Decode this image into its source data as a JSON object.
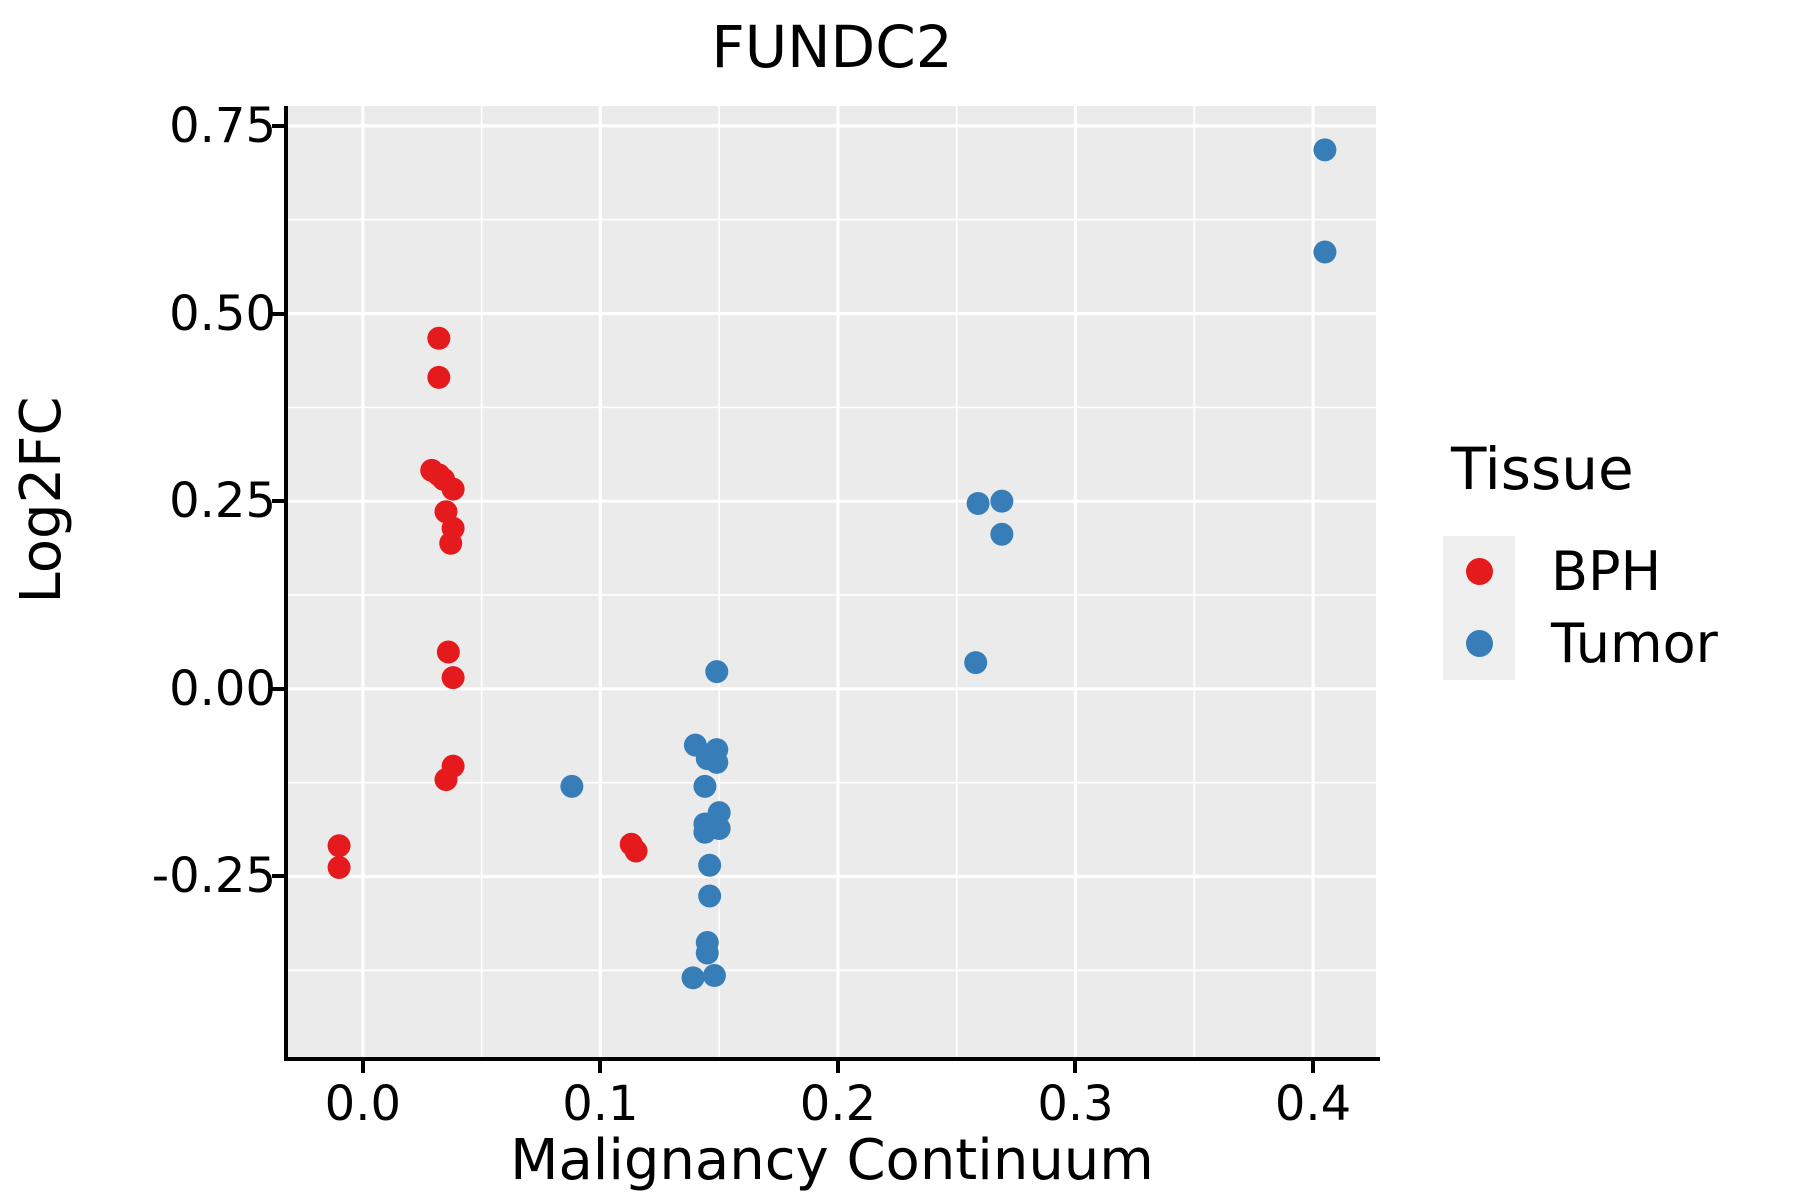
{
  "figure": {
    "background": "#FFFFFF"
  },
  "chart_data": {
    "type": "scatter",
    "title": "FUNDC2",
    "xlabel": "Malignancy Continuum",
    "ylabel": "Log2FC",
    "xlim": [
      -0.0315,
      0.4265
    ],
    "ylim": [
      -0.4905,
      0.7765
    ],
    "grid": true,
    "panel_bg": "#EBEBEB",
    "grid_major_color": "#FFFFFF",
    "grid_minor_color": "#FFFFFF",
    "point_radius_px": 11.5,
    "legend_position": "right",
    "xticks": [
      {
        "v": 0.0,
        "label": "0.0"
      },
      {
        "v": 0.1,
        "label": "0.1"
      },
      {
        "v": 0.2,
        "label": "0.2"
      },
      {
        "v": 0.3,
        "label": "0.3"
      },
      {
        "v": 0.4,
        "label": "0.4"
      }
    ],
    "yticks": [
      {
        "v": 0.75,
        "label": "0.75"
      },
      {
        "v": 0.5,
        "label": "0.50"
      },
      {
        "v": 0.25,
        "label": "0.25"
      },
      {
        "v": 0.0,
        "label": "0.00"
      },
      {
        "v": -0.25,
        "label": "-0.25"
      }
    ],
    "xminor": [
      0.05,
      0.15,
      0.25,
      0.35
    ],
    "yminor": [
      0.625,
      0.375,
      0.125,
      -0.125,
      -0.375
    ],
    "series": [
      {
        "name": "BPH",
        "color": "#E41A1C",
        "points": [
          [
            -0.01,
            -0.209
          ],
          [
            -0.01,
            -0.238
          ],
          [
            0.032,
            0.467
          ],
          [
            0.032,
            0.415
          ],
          [
            0.029,
            0.291
          ],
          [
            0.032,
            0.285
          ],
          [
            0.034,
            0.279
          ],
          [
            0.038,
            0.266
          ],
          [
            0.035,
            0.236
          ],
          [
            0.038,
            0.214
          ],
          [
            0.037,
            0.194
          ],
          [
            0.036,
            0.049
          ],
          [
            0.038,
            0.015
          ],
          [
            0.038,
            -0.103
          ],
          [
            0.035,
            -0.121
          ],
          [
            0.113,
            -0.207
          ],
          [
            0.115,
            -0.216
          ]
        ]
      },
      {
        "name": "Tumor",
        "color": "#377EB8",
        "points": [
          [
            0.405,
            0.718
          ],
          [
            0.405,
            0.582
          ],
          [
            0.259,
            0.247
          ],
          [
            0.269,
            0.25
          ],
          [
            0.269,
            0.206
          ],
          [
            0.258,
            0.035
          ],
          [
            0.149,
            0.023
          ],
          [
            0.088,
            -0.13
          ],
          [
            0.14,
            -0.075
          ],
          [
            0.149,
            -0.081
          ],
          [
            0.145,
            -0.093
          ],
          [
            0.149,
            -0.098
          ],
          [
            0.144,
            -0.13
          ],
          [
            0.15,
            -0.165
          ],
          [
            0.144,
            -0.18
          ],
          [
            0.15,
            -0.186
          ],
          [
            0.144,
            -0.191
          ],
          [
            0.146,
            -0.235
          ],
          [
            0.146,
            -0.276
          ],
          [
            0.145,
            -0.338
          ],
          [
            0.145,
            -0.352
          ],
          [
            0.139,
            -0.385
          ],
          [
            0.148,
            -0.382
          ]
        ]
      }
    ]
  },
  "legend": {
    "title": "Tissue",
    "key_bg": "#EFEFEF",
    "entries": [
      {
        "label": "BPH",
        "color": "#E41A1C"
      },
      {
        "label": "Tumor",
        "color": "#377EB8"
      }
    ]
  }
}
